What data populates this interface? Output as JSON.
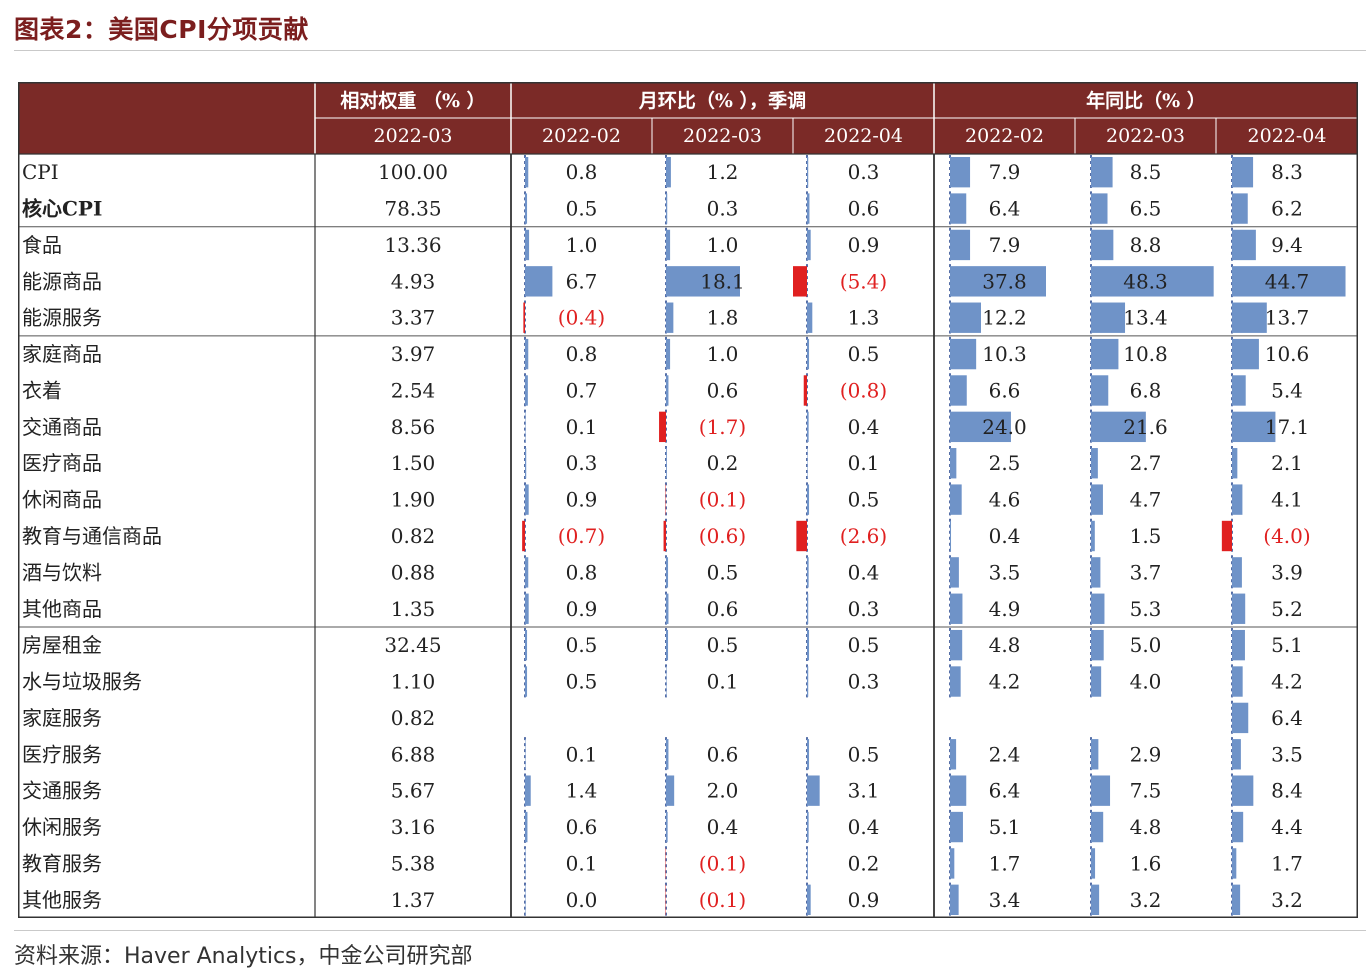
{
  "title": "图表2：美国CPI分项贡献",
  "source": "资料来源：Haver Analytics，中金公司研究部",
  "colors": {
    "header_bg": "#7b2a27",
    "header_text": "#ffffff",
    "pos_bar": "#6f93c8",
    "neg_bar": "#e02020",
    "neg_text": "#e02020",
    "grid": "#555555"
  },
  "chart_data": {
    "type": "table",
    "header_groups": [
      {
        "label": "相对权重 （% ）"
      },
      {
        "label": "月环比（% ），季调"
      },
      {
        "label": "年同比（% ）"
      }
    ],
    "sub_headers": [
      "2022-03",
      "2022-02",
      "2022-03",
      "2022-04",
      "2022-02",
      "2022-03",
      "2022-04"
    ],
    "negative_format": "parentheses",
    "rows": [
      {
        "name": "CPI",
        "weight": "100.00",
        "mom": [
          0.8,
          1.2,
          0.3
        ],
        "yoy": [
          7.9,
          8.5,
          8.3
        ]
      },
      {
        "name": "核心CPI",
        "weight": "78.35",
        "mom": [
          0.5,
          0.3,
          0.6
        ],
        "yoy": [
          6.4,
          6.5,
          6.2
        ]
      },
      {
        "name": "食品",
        "weight": "13.36",
        "mom": [
          1.0,
          1.0,
          0.9
        ],
        "yoy": [
          7.9,
          8.8,
          9.4
        ]
      },
      {
        "name": "能源商品",
        "weight": "4.93",
        "mom": [
          6.7,
          18.1,
          -5.4
        ],
        "yoy": [
          37.8,
          48.3,
          44.7
        ]
      },
      {
        "name": "能源服务",
        "weight": "3.37",
        "mom": [
          -0.4,
          1.8,
          1.3
        ],
        "yoy": [
          12.2,
          13.4,
          13.7
        ]
      },
      {
        "name": "家庭商品",
        "weight": "3.97",
        "mom": [
          0.8,
          1.0,
          0.5
        ],
        "yoy": [
          10.3,
          10.8,
          10.6
        ]
      },
      {
        "name": "衣着",
        "weight": "2.54",
        "mom": [
          0.7,
          0.6,
          -0.8
        ],
        "yoy": [
          6.6,
          6.8,
          5.4
        ]
      },
      {
        "name": "交通商品",
        "weight": "8.56",
        "mom": [
          0.1,
          -1.7,
          0.4
        ],
        "yoy": [
          24.0,
          21.6,
          17.1
        ]
      },
      {
        "name": "医疗商品",
        "weight": "1.50",
        "mom": [
          0.3,
          0.2,
          0.1
        ],
        "yoy": [
          2.5,
          2.7,
          2.1
        ]
      },
      {
        "name": "休闲商品",
        "weight": "1.90",
        "mom": [
          0.9,
          -0.1,
          0.5
        ],
        "yoy": [
          4.6,
          4.7,
          4.1
        ]
      },
      {
        "name": "教育与通信商品",
        "weight": "0.82",
        "mom": [
          -0.7,
          -0.6,
          -2.6
        ],
        "yoy": [
          0.4,
          1.5,
          -4.0
        ]
      },
      {
        "name": "酒与饮料",
        "weight": "0.88",
        "mom": [
          0.8,
          0.5,
          0.4
        ],
        "yoy": [
          3.5,
          3.7,
          3.9
        ]
      },
      {
        "name": "其他商品",
        "weight": "1.35",
        "mom": [
          0.9,
          0.6,
          0.3
        ],
        "yoy": [
          4.9,
          5.3,
          5.2
        ]
      },
      {
        "name": "房屋租金",
        "weight": "32.45",
        "mom": [
          0.5,
          0.5,
          0.5
        ],
        "yoy": [
          4.8,
          5.0,
          5.1
        ]
      },
      {
        "name": "水与垃圾服务",
        "weight": "1.10",
        "mom": [
          0.5,
          0.1,
          0.3
        ],
        "yoy": [
          4.2,
          4.0,
          4.2
        ]
      },
      {
        "name": "家庭服务",
        "weight": "0.82",
        "mom": [
          null,
          null,
          null
        ],
        "yoy": [
          null,
          null,
          6.4
        ]
      },
      {
        "name": "医疗服务",
        "weight": "6.88",
        "mom": [
          0.1,
          0.6,
          0.5
        ],
        "yoy": [
          2.4,
          2.9,
          3.5
        ]
      },
      {
        "name": "交通服务",
        "weight": "5.67",
        "mom": [
          1.4,
          2.0,
          3.1
        ],
        "yoy": [
          6.4,
          7.5,
          8.4
        ]
      },
      {
        "name": "休闲服务",
        "weight": "3.16",
        "mom": [
          0.6,
          0.4,
          0.4
        ],
        "yoy": [
          5.1,
          4.8,
          4.4
        ]
      },
      {
        "name": "教育服务",
        "weight": "5.38",
        "mom": [
          0.1,
          -0.1,
          0.2
        ],
        "yoy": [
          1.7,
          1.6,
          1.7
        ]
      },
      {
        "name": "其他服务",
        "weight": "1.37",
        "mom": [
          0.0,
          -0.1,
          0.9
        ],
        "yoy": [
          3.4,
          3.2,
          3.2
        ]
      }
    ],
    "bold_rows": [
      "核心CPI"
    ],
    "group_breaks_after": [
      "核心CPI",
      "能源服务",
      "其他商品"
    ]
  }
}
